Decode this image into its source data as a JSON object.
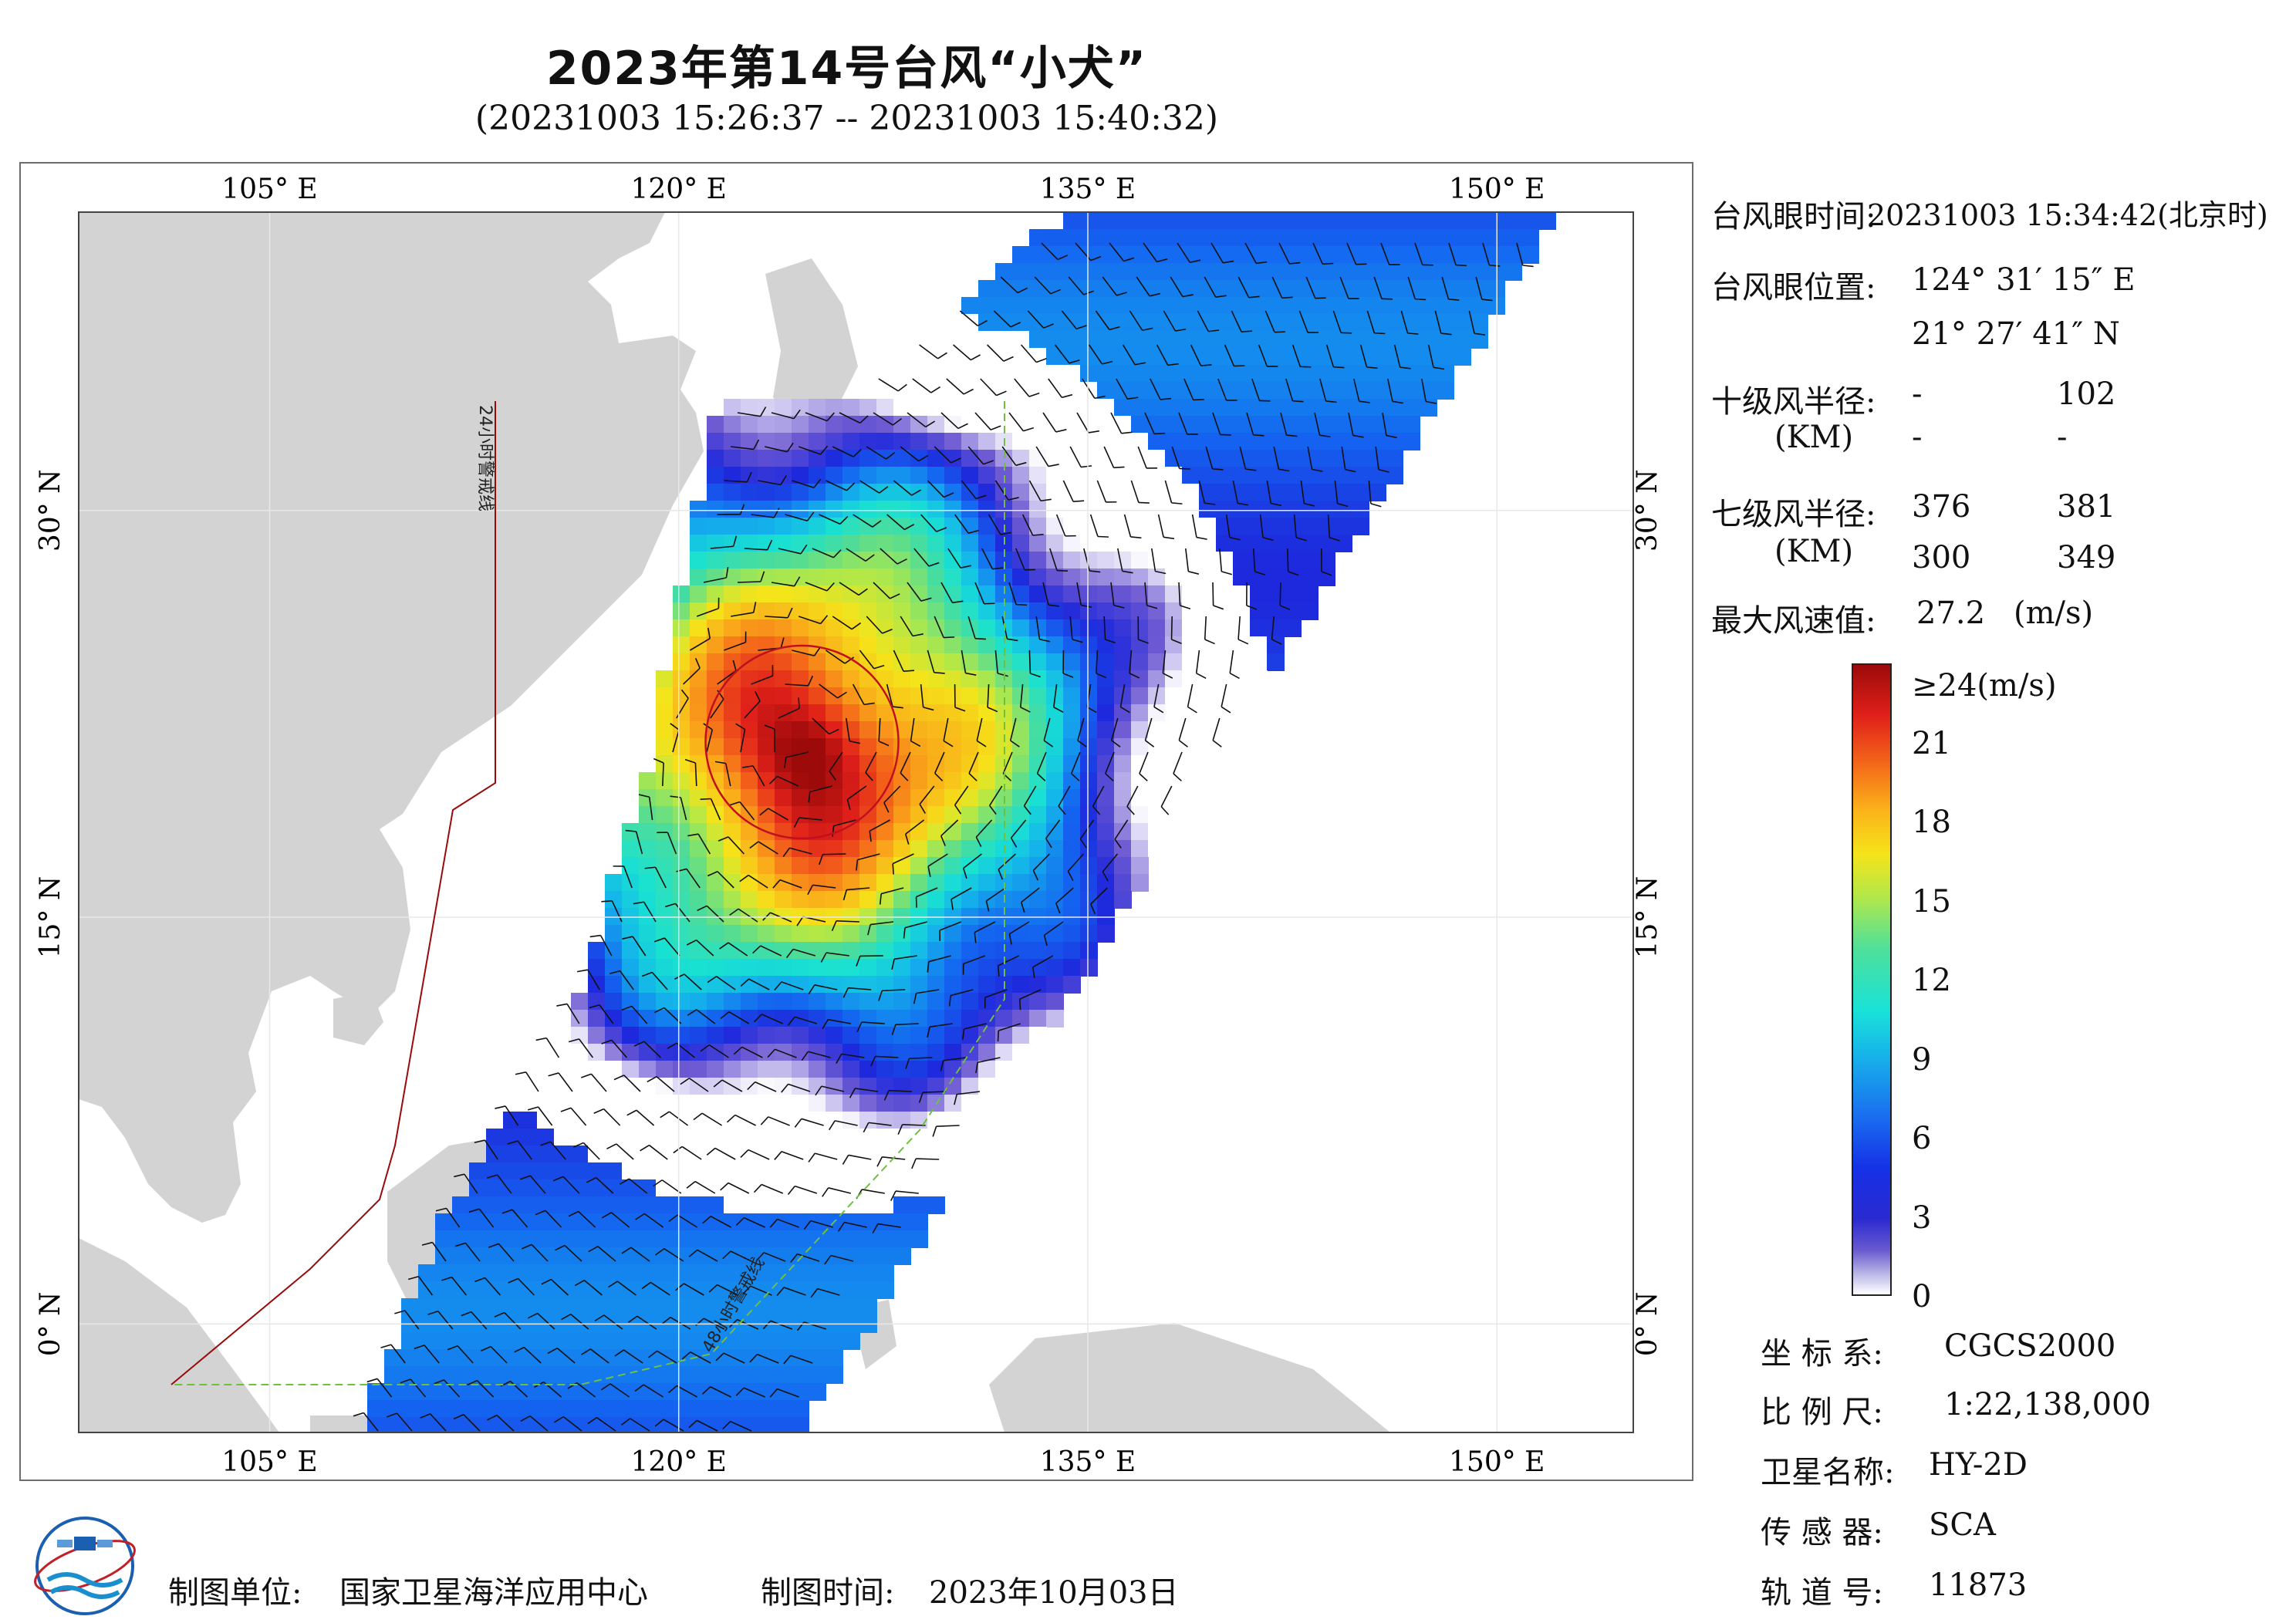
{
  "title": "2023年第14号台风“小犬”",
  "subtitle": "(20231003 15:26:37 -- 20231003 15:40:32)",
  "axes": {
    "lon_labels": [
      "105° E",
      "120° E",
      "135° E",
      "150° E"
    ],
    "lat_labels": [
      "30° N",
      "15° N",
      "0° N"
    ],
    "lon_values": [
      105,
      120,
      135,
      150
    ],
    "lat_values": [
      30,
      15,
      0
    ],
    "lon_range": [
      98,
      155
    ],
    "lat_range": [
      -4,
      41
    ]
  },
  "track_labels": [
    "24小时警戒线",
    "48小时警戒线"
  ],
  "typhoon_eye": {
    "lon": 124.52,
    "lat": 21.46
  },
  "info": {
    "eye_time_label": "台风眼时间:",
    "eye_time_value": "20231003 15:34:42(北京时)",
    "eye_pos_label": "台风眼位置:",
    "eye_lon": "124° 31′ 15″ E",
    "eye_lat": "21° 27′ 41″ N",
    "r10_label": "十级风半径:",
    "r10_row1": [
      "-",
      "102"
    ],
    "r10_row2": [
      "-",
      "-"
    ],
    "km_label": "(KM)",
    "r7_label": "七级风半径:",
    "r7_row1": [
      "376",
      "381"
    ],
    "r7_row2": [
      "300",
      "349"
    ],
    "max_wind_label": "最大风速值:",
    "max_wind_value": "27.2",
    "max_wind_unit": "(m/s)"
  },
  "colorbar": {
    "top_label": "≥24(m/s)",
    "ticks": [
      "21",
      "18",
      "15",
      "12",
      "9",
      "6",
      "3",
      "0"
    ],
    "tick_values": [
      21,
      18,
      15,
      12,
      9,
      6,
      3,
      0
    ]
  },
  "meta": {
    "crs_label": "坐 标 系:",
    "crs_value": "CGCS2000",
    "scale_label": "比 例 尺:",
    "scale_value": "1:22,138,000",
    "sat_label": "卫星名称:",
    "sat_value": "HY-2D",
    "sensor_label": "传 感 器:",
    "sensor_value": "SCA",
    "orbit_label": "轨 道 号:",
    "orbit_value": "11873"
  },
  "footer": {
    "org_label": "制图单位:",
    "org_value": "国家卫星海洋应用中心",
    "time_label": "制图时间:",
    "time_value": "2023年10月03日"
  },
  "colors": {
    "land": "#d3d3d3",
    "sea": "#ffffff",
    "track24": "#9a0a0a",
    "track48": "#70c040",
    "circle": "#c01020"
  }
}
